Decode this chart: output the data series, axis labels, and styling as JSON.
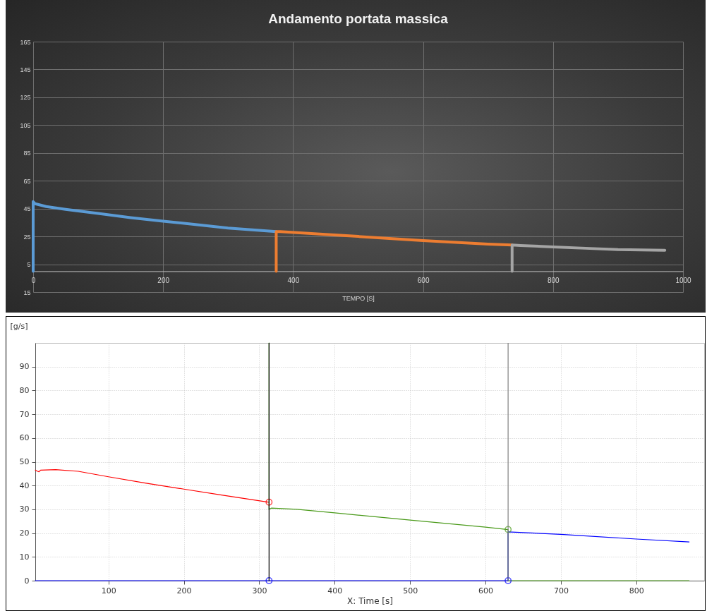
{
  "chart_data": [
    {
      "type": "line",
      "title": "Andamento portata massica",
      "xlabel": "TEMPO [S]",
      "xlim": [
        0,
        1000
      ],
      "xticks": [
        0,
        200,
        400,
        600,
        800,
        1000
      ],
      "ylim": [
        -15,
        165
      ],
      "yticks": [
        {
          "value": -15,
          "label": "15"
        },
        5,
        25,
        45,
        65,
        85,
        105,
        125,
        145,
        165
      ],
      "grid": true,
      "series": [
        {
          "color": "#5b9bd5",
          "x": [
            0,
            0,
            3,
            20,
            50,
            100,
            150,
            200,
            250,
            300,
            374
          ],
          "values": [
            0,
            50,
            48.5,
            46.5,
            44.5,
            41.5,
            38.5,
            36,
            33.5,
            31,
            28.5
          ]
        },
        {
          "color": "#ed7d31",
          "x": [
            374,
            374,
            380,
            450,
            500,
            600,
            700,
            737
          ],
          "values": [
            0,
            28.5,
            28.5,
            26.5,
            25,
            22,
            19.5,
            18.8
          ]
        },
        {
          "color": "#a5a5a5",
          "x": [
            737,
            737,
            750,
            800,
            850,
            900,
            972
          ],
          "values": [
            0,
            18.8,
            18.5,
            17.5,
            16.5,
            15.5,
            15
          ]
        }
      ]
    },
    {
      "type": "line",
      "ylabel": "[g/s]",
      "xlabel": "X: Time [s]",
      "xlim": [
        3,
        890
      ],
      "xticks": [
        100,
        200,
        300,
        400,
        500,
        600,
        700,
        800
      ],
      "ylim": [
        0,
        100
      ],
      "yticks": [
        0,
        10,
        20,
        30,
        40,
        50,
        60,
        70,
        80,
        90
      ],
      "grid": true,
      "ref_lines": [
        {
          "axis": "x",
          "value": 313,
          "color": "#000000"
        },
        {
          "axis": "x",
          "value": 630,
          "color": "#808080"
        }
      ],
      "series": [
        {
          "color": "#ff0000",
          "x": [
            3,
            6,
            8,
            10,
            30,
            60,
            100,
            150,
            200,
            250,
            313
          ],
          "values": [
            46.5,
            46,
            45.8,
            46.5,
            46.7,
            46,
            43.7,
            41,
            38.5,
            36,
            33
          ]
        },
        {
          "color": "#4a9a1a",
          "x": [
            313,
            313,
            316,
            350,
            400,
            500,
            600,
            630,
            630,
            870
          ],
          "values": [
            100,
            30,
            30.5,
            30,
            28.5,
            25.5,
            22.5,
            21.5,
            0,
            0
          ]
        },
        {
          "color": "#0000ff",
          "x": [
            3,
            630,
            630,
            700,
            800,
            870
          ],
          "values": [
            0,
            0,
            20.5,
            19.5,
            17.5,
            16.3
          ]
        },
        {
          "type": "scatter",
          "marker": "circle",
          "color": "#ff0000",
          "x": [
            313
          ],
          "values": [
            33
          ]
        },
        {
          "type": "scatter",
          "marker": "circle",
          "color": "#4a9a1a",
          "x": [
            630
          ],
          "values": [
            21.5
          ]
        },
        {
          "type": "scatter",
          "marker": "circle",
          "color": "#0000ff",
          "x": [
            313,
            630
          ],
          "values": [
            0,
            0
          ]
        }
      ]
    }
  ]
}
